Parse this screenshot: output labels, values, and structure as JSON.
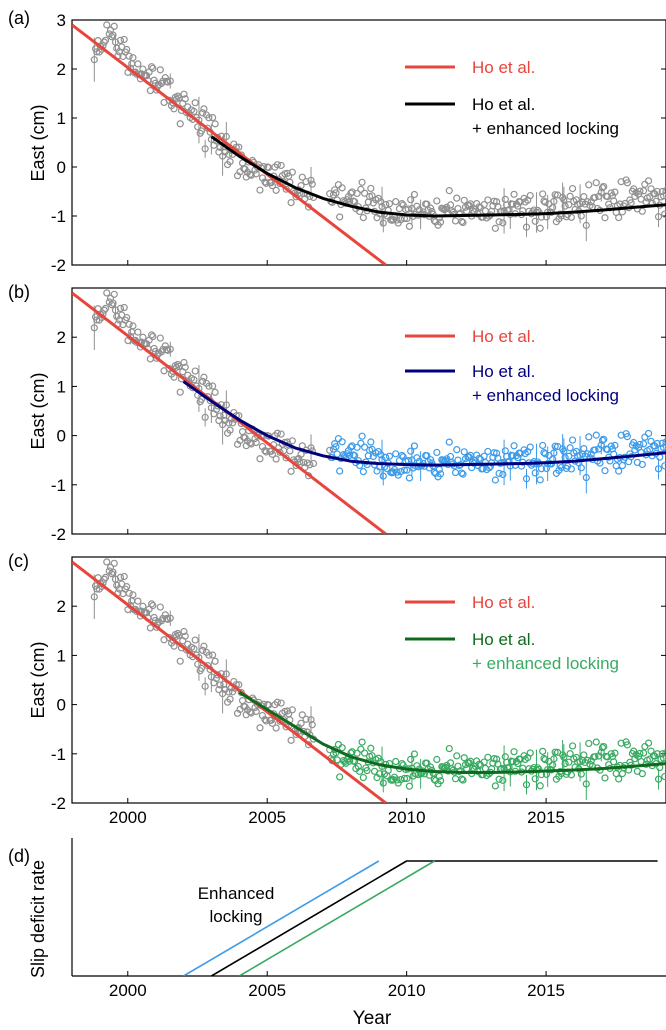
{
  "chart_data": [
    {
      "panel_label": "(a)",
      "type": "scatter",
      "ylabel": "East (cm)",
      "xlim": [
        1998,
        2019.3
      ],
      "ylim": [
        -2,
        3
      ],
      "yticks": [
        "-2",
        "-1",
        "0",
        "1",
        "2",
        "3"
      ],
      "xticks": [
        2000,
        2005,
        2010,
        2015
      ],
      "observations": {
        "early_color": "#909090",
        "late_color": "#909090",
        "split_year": 2007.3,
        "trend_points": [
          [
            1998.9,
            2.45
          ],
          [
            1999.3,
            2.75
          ],
          [
            2000.2,
            2.0
          ],
          [
            2001.0,
            1.75
          ],
          [
            2001.5,
            1.45
          ],
          [
            2002.5,
            1.0
          ],
          [
            2003.5,
            0.3
          ],
          [
            2004.5,
            -0.05
          ],
          [
            2005.5,
            -0.3
          ],
          [
            2006.5,
            -0.45
          ],
          [
            2007.4,
            -0.6
          ],
          [
            2008.5,
            -0.75
          ],
          [
            2010,
            -0.85
          ],
          [
            2012,
            -0.9
          ],
          [
            2014,
            -0.85
          ],
          [
            2016,
            -0.8
          ],
          [
            2018,
            -0.65
          ],
          [
            2019.3,
            -0.6
          ]
        ]
      },
      "series": [
        {
          "name": "Ho et al.",
          "color": "#e8453c",
          "x": [
            1998,
            2009.25
          ],
          "y": [
            2.9,
            -2.0
          ]
        },
        {
          "name": "Ho et al.\n+ enhanced locking",
          "color": "#000000",
          "x": [
            2003,
            2004,
            2005,
            2006,
            2007,
            2008,
            2009,
            2010,
            2011,
            2012,
            2013,
            2014,
            2015,
            2016,
            2017,
            2018,
            2019.3
          ],
          "y": [
            0.62,
            0.22,
            -0.13,
            -0.42,
            -0.64,
            -0.8,
            -0.92,
            -0.98,
            -1.0,
            -0.99,
            -0.98,
            -0.97,
            -0.95,
            -0.92,
            -0.88,
            -0.83,
            -0.77
          ]
        }
      ],
      "legend": [
        "Ho et al.",
        "Ho et al.",
        "+ enhanced locking"
      ]
    },
    {
      "panel_label": "(b)",
      "type": "scatter",
      "ylabel": "East (cm)",
      "xlim": [
        1998,
        2019.3
      ],
      "ylim": [
        -2,
        3
      ],
      "yticks": [
        "-2",
        "-1",
        "0",
        "1",
        "2"
      ],
      "xticks": [
        2000,
        2005,
        2010,
        2015
      ],
      "observations": {
        "early_color": "#909090",
        "late_color": "#3d9be9",
        "split_year": 2007.3,
        "trend_points": [
          [
            1998.9,
            2.45
          ],
          [
            1999.3,
            2.75
          ],
          [
            2000.2,
            2.0
          ],
          [
            2001.0,
            1.75
          ],
          [
            2001.5,
            1.45
          ],
          [
            2002.5,
            1.0
          ],
          [
            2003.5,
            0.3
          ],
          [
            2004.5,
            -0.05
          ],
          [
            2005.5,
            -0.3
          ],
          [
            2006.5,
            -0.45
          ],
          [
            2007.4,
            -0.3
          ],
          [
            2008.5,
            -0.45
          ],
          [
            2010,
            -0.5
          ],
          [
            2012,
            -0.55
          ],
          [
            2014,
            -0.5
          ],
          [
            2016,
            -0.45
          ],
          [
            2018,
            -0.35
          ],
          [
            2019.3,
            -0.25
          ]
        ]
      },
      "series": [
        {
          "name": "Ho et al.",
          "color": "#e8453c",
          "x": [
            1998,
            2009.25
          ],
          "y": [
            2.9,
            -2.0
          ]
        },
        {
          "name": "Ho et al.\n+ enhanced locking",
          "color": "#00007f",
          "x": [
            2002,
            2003,
            2004,
            2005,
            2006,
            2007,
            2008,
            2009,
            2010,
            2011,
            2012,
            2013,
            2014,
            2015,
            2016,
            2017,
            2018,
            2019.3
          ],
          "y": [
            1.1,
            0.7,
            0.32,
            0.0,
            -0.25,
            -0.41,
            -0.52,
            -0.57,
            -0.59,
            -0.6,
            -0.59,
            -0.58,
            -0.57,
            -0.55,
            -0.52,
            -0.47,
            -0.42,
            -0.35
          ]
        }
      ],
      "legend": [
        "Ho et al.",
        "Ho et al.",
        "+ enhanced locking"
      ]
    },
    {
      "panel_label": "(c)",
      "type": "scatter",
      "ylabel": "East (cm)",
      "xlim": [
        1998,
        2019.3
      ],
      "ylim": [
        -2,
        3
      ],
      "yticks": [
        "-2",
        "-1",
        "0",
        "1",
        "2"
      ],
      "xticks": [
        2000,
        2005,
        2010,
        2015
      ],
      "observations": {
        "early_color": "#909090",
        "late_color": "#3aaa63",
        "split_year": 2007.3,
        "trend_points": [
          [
            1998.9,
            2.45
          ],
          [
            1999.3,
            2.75
          ],
          [
            2000.2,
            2.0
          ],
          [
            2001.0,
            1.75
          ],
          [
            2001.5,
            1.45
          ],
          [
            2002.5,
            1.0
          ],
          [
            2003.5,
            0.3
          ],
          [
            2004.5,
            -0.05
          ],
          [
            2005.5,
            -0.3
          ],
          [
            2006.5,
            -0.45
          ],
          [
            2007.4,
            -1.05
          ],
          [
            2008.5,
            -1.2
          ],
          [
            2010,
            -1.3
          ],
          [
            2012,
            -1.3
          ],
          [
            2014,
            -1.25
          ],
          [
            2016,
            -1.2
          ],
          [
            2018,
            -1.15
          ],
          [
            2019.3,
            -1.1
          ]
        ]
      },
      "series": [
        {
          "name": "Ho et al.",
          "color": "#e8453c",
          "x": [
            1998,
            2009.25
          ],
          "y": [
            2.9,
            -2.0
          ]
        },
        {
          "name": "Ho et al.\n+ enhanced locking",
          "color": "#0e6b1d",
          "x": [
            2004,
            2005,
            2006,
            2007,
            2008,
            2009,
            2010,
            2011,
            2012,
            2013,
            2014,
            2015,
            2016,
            2017,
            2018,
            2019.3
          ],
          "y": [
            0.25,
            -0.1,
            -0.45,
            -0.8,
            -1.06,
            -1.22,
            -1.31,
            -1.36,
            -1.38,
            -1.38,
            -1.37,
            -1.35,
            -1.33,
            -1.3,
            -1.26,
            -1.2
          ]
        }
      ],
      "legend": [
        "Ho et al.",
        "Ho et al.",
        "+ enhanced locking"
      ]
    },
    {
      "panel_label": "(d)",
      "type": "line",
      "ylabel": "Slip deficit rate",
      "xlabel": "Year",
      "xlim": [
        1998,
        2019.3
      ],
      "ylim": [
        0,
        1.2
      ],
      "xticks": [
        2000,
        2005,
        2010,
        2015
      ],
      "annotation": "Enhanced\nlocking",
      "series": [
        {
          "color": "#3d9be9",
          "x": [
            2002,
            2009
          ],
          "y": [
            0,
            1.0
          ]
        },
        {
          "color": "#000000",
          "x": [
            2003,
            2010,
            2019
          ],
          "y": [
            0,
            1.0,
            1.0
          ]
        },
        {
          "color": "#3aaa63",
          "x": [
            2004,
            2011
          ],
          "y": [
            0,
            1.0
          ]
        }
      ]
    }
  ]
}
